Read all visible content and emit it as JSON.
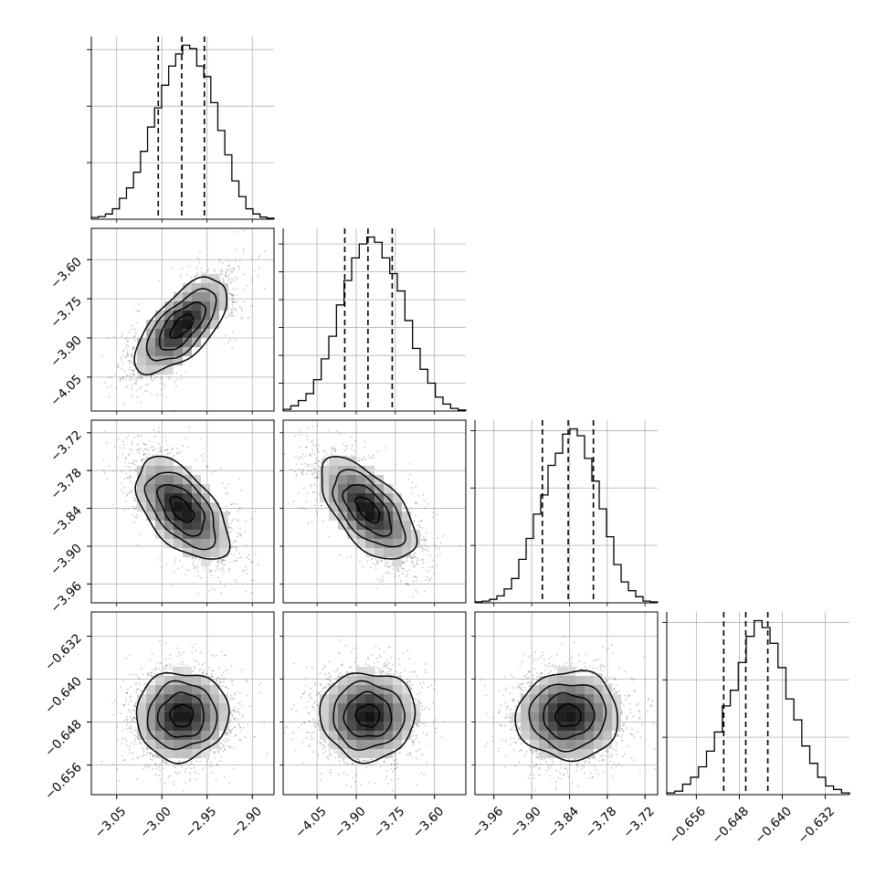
{
  "chart_data": {
    "type": "corner",
    "grid": true,
    "params": [
      {
        "range": [
          -3.078,
          -2.876
        ],
        "ticks": [
          -3.05,
          -3.0,
          -2.95,
          -2.9
        ],
        "tick_labels": [
          "−3.05",
          "−3.00",
          "−2.95",
          "−2.90"
        ],
        "quantiles": [
          -3.004,
          -2.978,
          -2.953
        ],
        "hist": [
          0.01,
          0.015,
          0.03,
          0.06,
          0.12,
          0.18,
          0.27,
          0.39,
          0.53,
          0.64,
          0.77,
          0.88,
          0.95,
          1.0,
          0.98,
          0.88,
          0.82,
          0.67,
          0.51,
          0.37,
          0.22,
          0.13,
          0.06,
          0.03,
          0.012,
          0.006
        ],
        "hist_ymax": 1.05,
        "hist_yticks": [
          0.325,
          0.65,
          0.975
        ]
      },
      {
        "range": [
          -4.18,
          -3.48
        ],
        "ticks": [
          -4.05,
          -3.9,
          -3.75,
          -3.6
        ],
        "tick_labels": [
          "−4.05",
          "−3.90",
          "−3.75",
          "−3.60"
        ],
        "quantiles": [
          -3.944,
          -3.855,
          -3.762
        ],
        "hist": [
          0.01,
          0.03,
          0.06,
          0.1,
          0.18,
          0.3,
          0.43,
          0.61,
          0.75,
          0.88,
          0.96,
          1.0,
          0.97,
          0.88,
          0.79,
          0.69,
          0.52,
          0.36,
          0.24,
          0.16,
          0.08,
          0.04,
          0.015,
          0.006
        ],
        "hist_ymax": 1.05,
        "hist_yticks": [
          0.16,
          0.32,
          0.48,
          0.64,
          0.8,
          0.96
        ]
      },
      {
        "range": [
          -3.99,
          -3.7
        ],
        "ticks": [
          -3.96,
          -3.9,
          -3.84,
          -3.78,
          -3.72
        ],
        "tick_labels": [
          "−3.96",
          "−3.90",
          "−3.84",
          "−3.78",
          "−3.72"
        ],
        "quantiles": [
          -3.883,
          -3.842,
          -3.802
        ],
        "hist": [
          0.005,
          0.01,
          0.02,
          0.04,
          0.08,
          0.14,
          0.25,
          0.37,
          0.51,
          0.62,
          0.79,
          0.86,
          0.97,
          1.0,
          0.96,
          0.83,
          0.7,
          0.54,
          0.38,
          0.22,
          0.12,
          0.07,
          0.035,
          0.01,
          0.005
        ],
        "hist_ymax": 1.05,
        "hist_yticks": [
          0.33,
          0.66,
          0.99
        ]
      },
      {
        "range": [
          -0.6615,
          -0.6275
        ],
        "ticks": [
          -0.656,
          -0.648,
          -0.64,
          -0.632
        ],
        "tick_labels": [
          "−0.656",
          "−0.648",
          "−0.640",
          "−0.632"
        ],
        "quantiles": [
          -0.6509,
          -0.6468,
          -0.6427
        ],
        "hist": [
          0.01,
          0.02,
          0.06,
          0.1,
          0.16,
          0.25,
          0.36,
          0.51,
          0.6,
          0.76,
          0.91,
          1.0,
          0.96,
          0.87,
          0.73,
          0.55,
          0.43,
          0.28,
          0.18,
          0.1,
          0.05,
          0.03,
          0.01
        ],
        "hist_ymax": 1.05,
        "hist_yticks": [
          0.33,
          0.66,
          0.99
        ]
      }
    ],
    "correlations": {
      "1_0": 0.65,
      "2_0": -0.55,
      "2_1": -0.6,
      "3_0": 0.03,
      "3_1": 0.0,
      "3_2": 0.02
    }
  }
}
